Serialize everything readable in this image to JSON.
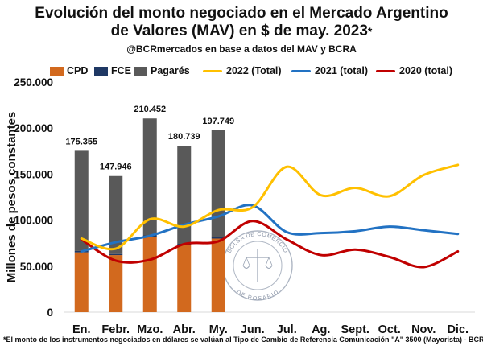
{
  "chart_data": {
    "type": "bar",
    "title": "Evolución del monto negociado en el Mercado Argentino de Valores (MAV) en $ de may. 2023",
    "title_marker": "*",
    "subtitle": "@BCRmercados en base a datos del MAV y BCRA",
    "ylabel": "Millones de pesos constantes",
    "xlabel": "",
    "ylim": [
      0,
      250000
    ],
    "yticks": [
      0,
      50000,
      100000,
      150000,
      200000,
      250000
    ],
    "ytick_labels": [
      "0",
      "50.000",
      "100.000",
      "150.000",
      "200.000",
      "250.000"
    ],
    "categories": [
      "En.",
      "Febr.",
      "Mzo.",
      "Abr.",
      "My.",
      "Jun.",
      "Jul.",
      "Ag.",
      "Sept.",
      "Oct.",
      "Nov.",
      "Dic."
    ],
    "stacked_bars": [
      {
        "name": "CPD",
        "color": "#d2691e",
        "values": [
          65000,
          62000,
          82000,
          73000,
          80000
        ]
      },
      {
        "name": "FCE",
        "color": "#1f3864",
        "values": [
          1500,
          1200,
          1500,
          1300,
          1500
        ]
      },
      {
        "name": "Pagarés",
        "color": "#595959",
        "values": [
          108855,
          84746,
          126952,
          106439,
          116249
        ]
      }
    ],
    "bar_totals": [
      175355,
      147946,
      210452,
      180739,
      197749
    ],
    "bar_total_labels": [
      "175.355",
      "147.946",
      "210.452",
      "180.739",
      "197.749"
    ],
    "line_series": [
      {
        "name": "2022 (Total)",
        "color": "#ffc000",
        "values": [
          80000,
          69000,
          101000,
          93000,
          111000,
          114000,
          158000,
          127000,
          135000,
          126000,
          149000,
          160000
        ]
      },
      {
        "name": "2021 (total)",
        "color": "#2272c3",
        "values": [
          66000,
          76000,
          83000,
          95000,
          104000,
          116000,
          87000,
          86000,
          88000,
          93000,
          89000,
          85000
        ]
      },
      {
        "name": "2020 (total)",
        "color": "#c00000",
        "values": [
          79000,
          56000,
          57000,
          74000,
          77000,
          99000,
          79000,
          62000,
          68000,
          60000,
          49000,
          66000
        ]
      }
    ],
    "grid": false,
    "legend_position": "top"
  },
  "watermark": {
    "text_top": "BOLSA DE COMERCIO",
    "text_bottom": "DE ROSARIO"
  },
  "footnote": "*El monto de los instrumentos negociados en dólares se valúan al Tipo de Cambio de Referencia Comunicación \"A\" 3500 (Mayorista) - BCRA"
}
